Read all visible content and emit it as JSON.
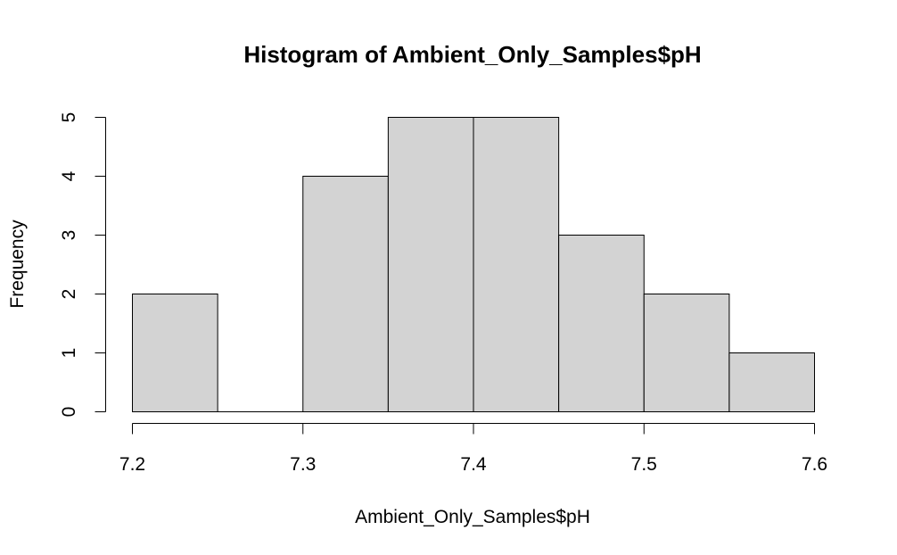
{
  "chart_data": {
    "type": "bar",
    "title": "Histogram of Ambient_Only_Samples$pH",
    "xlabel": "Ambient_Only_Samples$pH",
    "ylabel": "Frequency",
    "bins": [
      {
        "from": 7.2,
        "to": 7.25,
        "count": 2
      },
      {
        "from": 7.25,
        "to": 7.3,
        "count": 0
      },
      {
        "from": 7.3,
        "to": 7.35,
        "count": 4
      },
      {
        "from": 7.35,
        "to": 7.4,
        "count": 5
      },
      {
        "from": 7.4,
        "to": 7.45,
        "count": 5
      },
      {
        "from": 7.45,
        "to": 7.5,
        "count": 3
      },
      {
        "from": 7.5,
        "to": 7.55,
        "count": 2
      },
      {
        "from": 7.55,
        "to": 7.6,
        "count": 1
      }
    ],
    "xlim": [
      7.2,
      7.6
    ],
    "ylim": [
      0,
      5
    ],
    "x_ticks": [
      "7.2",
      "7.3",
      "7.4",
      "7.5",
      "7.6"
    ],
    "y_ticks": [
      "0",
      "1",
      "2",
      "3",
      "4",
      "5"
    ],
    "bar_fill": "#d3d3d3",
    "bar_stroke": "#000000",
    "grid": false,
    "legend": "none"
  }
}
